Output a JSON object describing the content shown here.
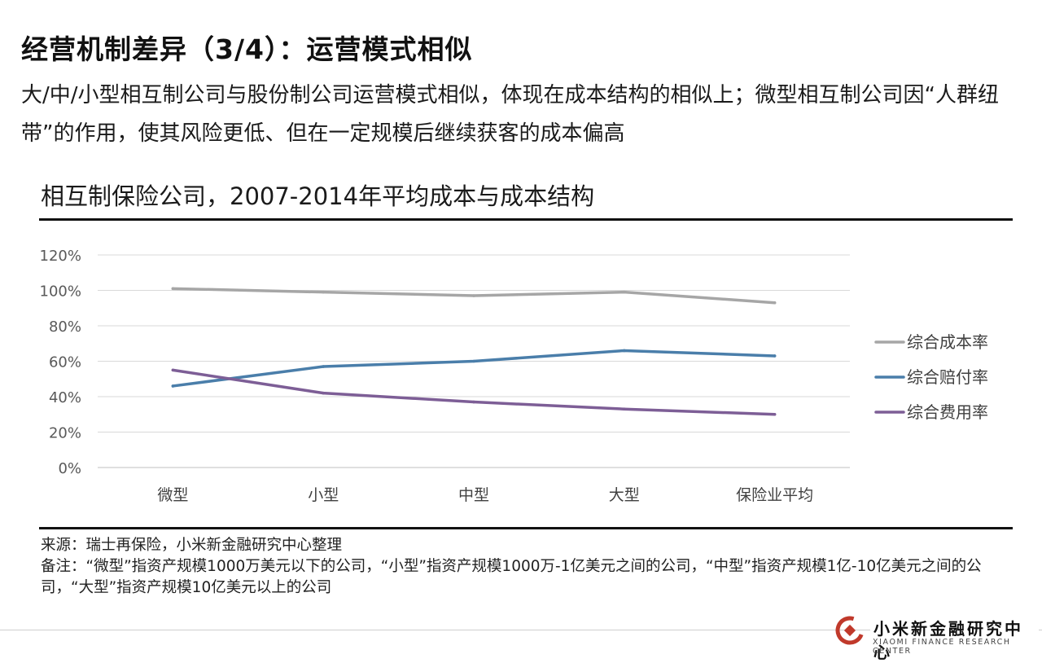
{
  "slide": {
    "title": "经营机制差异（3/4）：运营模式相似",
    "subtitle": "大/中/小型相互制公司与股份制公司运营模式相似，体现在成本结构的相似上；微型相互制公司因“人群纽带”的作用，使其风险更低、但在一定规模后继续获客的成本偏高"
  },
  "chart_data": {
    "type": "line",
    "title": "相互制保险公司，2007-2014年平均成本与成本结构",
    "categories": [
      "微型",
      "小型",
      "中型",
      "大型",
      "保险业平均"
    ],
    "ylim": [
      0,
      120
    ],
    "yticks": [
      0,
      20,
      40,
      60,
      80,
      100,
      120
    ],
    "ytick_labels": [
      "0%",
      "20%",
      "40%",
      "60%",
      "80%",
      "100%",
      "120%"
    ],
    "grid": true,
    "legend_position": "right",
    "series": [
      {
        "name": "综合成本率",
        "color": "#a6a6a6",
        "values": [
          101,
          99,
          97,
          99,
          93
        ]
      },
      {
        "name": "综合赔付率",
        "color": "#4a7eaa",
        "values": [
          46,
          57,
          60,
          66,
          63
        ]
      },
      {
        "name": "综合费用率",
        "color": "#7d5e96",
        "values": [
          55,
          42,
          37,
          33,
          30
        ]
      }
    ]
  },
  "notes": {
    "source": "来源：瑞士再保险，小米新金融研究中心整理",
    "remark": "备注：“微型”指资产规模1000万美元以下的公司，“小型”指资产规模1000万-1亿美元之间的公司，“中型”指资产规模1亿-10亿美元之间的公司，“大型”指资产规模10亿美元以上的公司"
  },
  "logo": {
    "name": "小米新金融研究中心",
    "name_en": "XIAOMI FINANCE RESEARCH CENTER",
    "brand_color": "#c0392b"
  }
}
